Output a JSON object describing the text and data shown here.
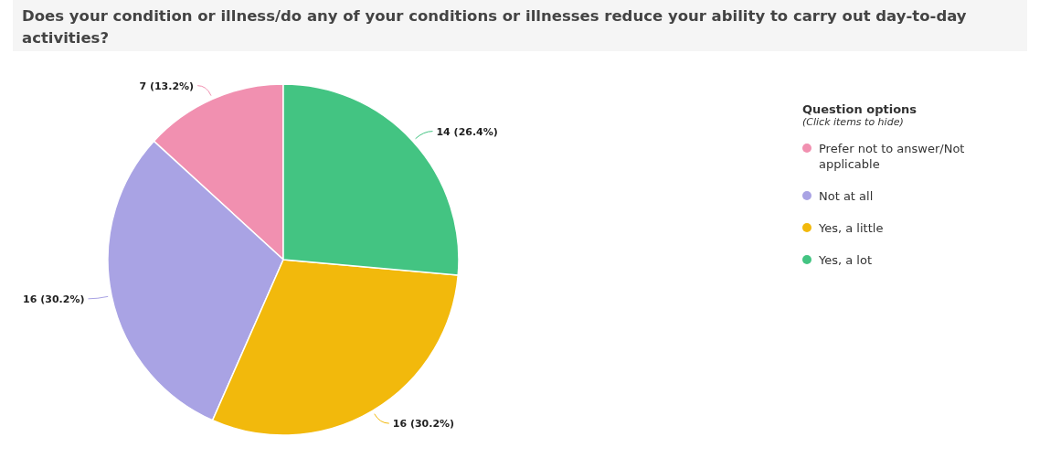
{
  "chart_data": {
    "type": "pie",
    "title": "Does your condition or illness/do any of your conditions or illnesses reduce your ability to carry out day-to-day activities?",
    "categories": [
      "Prefer not to answer/Not applicable",
      "Not at all",
      "Yes, a little",
      "Yes, a lot"
    ],
    "values": [
      7,
      16,
      16,
      14
    ],
    "value_labels": [
      "7 (13.2%)",
      "16 (30.2%)",
      "16 (30.2%)",
      "14 (26.4%)"
    ],
    "colors": [
      "#f190b0",
      "#a9a3e4",
      "#f2b90c",
      "#43c482"
    ],
    "legend": "right",
    "legend_title": "Question options",
    "annotations": [
      "(Click items to hide)"
    ]
  }
}
